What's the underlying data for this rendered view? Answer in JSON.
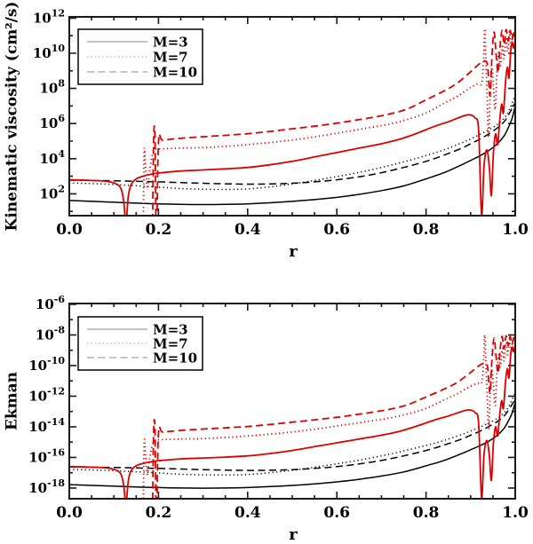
{
  "figure": {
    "background": "#ffffff",
    "colors": {
      "black": "#000000",
      "red": "#dd0000",
      "legend_sample": "#888888",
      "frame": "#1a1a1a"
    }
  },
  "chart_data": {
    "type": "line",
    "x_label": "r",
    "x_range": [
      0.0,
      1.0
    ],
    "x_tick_labels": [
      "0.0",
      "0.2",
      "0.4",
      "0.6",
      "0.8",
      "1.0"
    ],
    "legend": {
      "position": "upper left",
      "labels": [
        "M=3",
        "M=7",
        "M=10"
      ],
      "styles": [
        "solid",
        "dotted",
        "dashed"
      ]
    },
    "panels": [
      {
        "id": "top",
        "ylabel": "Kinematic viscosity (cm²/s)",
        "y_scale": "log",
        "y_range_exponents": [
          1,
          12
        ],
        "y_tick_labels": [
          "10^2",
          "10^4",
          "10^6",
          "10^8",
          "10^10",
          "10^12"
        ],
        "log10_offset": 0
      },
      {
        "id": "bottom",
        "ylabel": "Ekman",
        "y_scale": "log",
        "y_range_exponents": [
          -18.7,
          -6
        ],
        "y_tick_labels": [
          "10^-18",
          "10^-16",
          "10^-14",
          "10^-12",
          "10^-10",
          "10^-8",
          "10^-6"
        ],
        "log10_offset": -19.4,
        "note": "Ekman curves equal kinematic-viscosity curves scaled by 10^-19.4"
      }
    ],
    "series": [
      {
        "name": "black-M3",
        "legend_label": "M=3",
        "color_key": "black",
        "linestyle": "solid",
        "points_r_log10": [
          [
            0,
            1.62
          ],
          [
            0.05,
            1.57
          ],
          [
            0.1,
            1.52
          ],
          [
            0.15,
            1.47
          ],
          [
            0.2,
            1.43
          ],
          [
            0.25,
            1.4
          ],
          [
            0.3,
            1.39
          ],
          [
            0.35,
            1.4
          ],
          [
            0.4,
            1.43
          ],
          [
            0.45,
            1.49
          ],
          [
            0.5,
            1.57
          ],
          [
            0.55,
            1.67
          ],
          [
            0.6,
            1.8
          ],
          [
            0.65,
            1.97
          ],
          [
            0.7,
            2.18
          ],
          [
            0.75,
            2.45
          ],
          [
            0.8,
            2.85
          ],
          [
            0.84,
            3.2
          ],
          [
            0.88,
            3.65
          ],
          [
            0.9,
            3.9
          ],
          [
            0.92,
            4.15
          ],
          [
            0.94,
            4.45
          ],
          [
            0.96,
            4.85
          ],
          [
            0.975,
            5.3
          ],
          [
            0.985,
            5.8
          ],
          [
            0.993,
            6.3
          ],
          [
            1,
            7.0
          ]
        ]
      },
      {
        "name": "black-M7",
        "legend_label": "M=7",
        "color_key": "black",
        "linestyle": "dotted",
        "points_r_log10": [
          [
            0,
            2.62
          ],
          [
            0.05,
            2.58
          ],
          [
            0.1,
            2.53
          ],
          [
            0.15,
            2.46
          ],
          [
            0.2,
            2.38
          ],
          [
            0.25,
            2.3
          ],
          [
            0.3,
            2.26
          ],
          [
            0.35,
            2.25
          ],
          [
            0.4,
            2.28
          ],
          [
            0.45,
            2.4
          ],
          [
            0.5,
            2.56
          ],
          [
            0.55,
            2.76
          ],
          [
            0.6,
            2.98
          ],
          [
            0.65,
            3.22
          ],
          [
            0.7,
            3.5
          ],
          [
            0.75,
            3.82
          ],
          [
            0.8,
            4.18
          ],
          [
            0.84,
            4.5
          ],
          [
            0.88,
            4.9
          ],
          [
            0.9,
            5.12
          ],
          [
            0.92,
            5.37
          ],
          [
            0.94,
            5.63
          ],
          [
            0.96,
            5.95
          ],
          [
            0.975,
            6.3
          ],
          [
            0.985,
            6.7
          ],
          [
            1,
            7.6
          ]
        ]
      },
      {
        "name": "black-M10",
        "legend_label": "M=10",
        "color_key": "black",
        "linestyle": "dashed",
        "points_r_log10": [
          [
            0,
            2.78
          ],
          [
            0.05,
            2.76
          ],
          [
            0.1,
            2.74
          ],
          [
            0.15,
            2.71
          ],
          [
            0.2,
            2.68
          ],
          [
            0.25,
            2.64
          ],
          [
            0.3,
            2.6
          ],
          [
            0.35,
            2.57
          ],
          [
            0.4,
            2.55
          ],
          [
            0.45,
            2.56
          ],
          [
            0.5,
            2.6
          ],
          [
            0.55,
            2.68
          ],
          [
            0.6,
            2.8
          ],
          [
            0.65,
            2.97
          ],
          [
            0.7,
            3.2
          ],
          [
            0.75,
            3.5
          ],
          [
            0.8,
            3.85
          ],
          [
            0.84,
            4.2
          ],
          [
            0.88,
            4.6
          ],
          [
            0.9,
            4.85
          ],
          [
            0.92,
            5.1
          ],
          [
            0.94,
            5.4
          ],
          [
            0.96,
            5.75
          ],
          [
            0.975,
            6.1
          ],
          [
            0.985,
            6.5
          ],
          [
            1,
            7.2
          ]
        ]
      },
      {
        "name": "red-M3",
        "color_key": "red",
        "linestyle": "solid",
        "points_r_log10": [
          [
            0,
            2.8
          ],
          [
            0.04,
            2.77
          ],
          [
            0.08,
            2.72
          ],
          [
            0.1,
            2.62
          ],
          [
            0.115,
            2.35
          ],
          [
            0.122,
            1.6
          ],
          [
            0.127,
            0.3
          ],
          [
            0.132,
            1.8
          ],
          [
            0.138,
            2.5
          ],
          [
            0.15,
            2.85
          ],
          [
            0.165,
            3.0
          ],
          [
            0.18,
            3.1
          ],
          [
            0.2,
            3.18
          ],
          [
            0.25,
            3.3
          ],
          [
            0.3,
            3.36
          ],
          [
            0.35,
            3.42
          ],
          [
            0.4,
            3.5
          ],
          [
            0.45,
            3.65
          ],
          [
            0.5,
            3.85
          ],
          [
            0.55,
            4.1
          ],
          [
            0.6,
            4.35
          ],
          [
            0.65,
            4.6
          ],
          [
            0.7,
            4.85
          ],
          [
            0.74,
            5.1
          ],
          [
            0.78,
            5.45
          ],
          [
            0.82,
            5.85
          ],
          [
            0.85,
            6.1
          ],
          [
            0.87,
            6.3
          ],
          [
            0.895,
            6.5
          ],
          [
            0.91,
            6.32
          ],
          [
            0.918,
            5.6
          ],
          [
            0.9245,
            0.8
          ],
          [
            0.93,
            3.6
          ],
          [
            0.9365,
            4.5
          ],
          [
            0.942,
            3.5
          ],
          [
            0.9465,
            1.9
          ],
          [
            0.951,
            4.3
          ],
          [
            0.956,
            5.4
          ],
          [
            0.9605,
            4.8
          ],
          [
            0.965,
            6.1
          ],
          [
            0.9695,
            7.1
          ],
          [
            0.9735,
            6.6
          ],
          [
            0.978,
            8.3
          ],
          [
            0.9825,
            9.2
          ],
          [
            0.986,
            8.6
          ],
          [
            0.99,
            10.2
          ],
          [
            0.9935,
            10.6
          ],
          [
            0.9965,
            10.3
          ],
          [
            1,
            10.75
          ]
        ]
      },
      {
        "name": "red-M7",
        "color_key": "red",
        "linestyle": "dotted",
        "points_r_log10": [
          [
            0.1655,
            -0.8
          ],
          [
            0.168,
            4.35
          ],
          [
            0.171,
            3.6
          ],
          [
            0.175,
            2.3
          ],
          [
            0.18,
            3.3
          ],
          [
            0.186,
            4.2
          ],
          [
            0.192,
            4.5
          ],
          [
            0.2,
            4.55
          ],
          [
            0.25,
            4.6
          ],
          [
            0.3,
            4.63
          ],
          [
            0.35,
            4.7
          ],
          [
            0.4,
            4.8
          ],
          [
            0.45,
            4.92
          ],
          [
            0.5,
            5.06
          ],
          [
            0.55,
            5.24
          ],
          [
            0.6,
            5.45
          ],
          [
            0.64,
            5.62
          ],
          [
            0.68,
            5.8
          ],
          [
            0.72,
            5.98
          ],
          [
            0.76,
            6.25
          ],
          [
            0.8,
            6.6
          ],
          [
            0.84,
            7.15
          ],
          [
            0.87,
            7.55
          ],
          [
            0.9,
            8.05
          ],
          [
            0.915,
            8.25
          ],
          [
            0.925,
            8.3
          ],
          [
            0.9285,
            9.5
          ],
          [
            0.9315,
            11.4
          ],
          [
            0.934,
            9.8
          ],
          [
            0.937,
            7.5
          ],
          [
            0.9405,
            5.2
          ],
          [
            0.944,
            7.8
          ],
          [
            0.9475,
            9.2
          ],
          [
            0.951,
            8.2
          ],
          [
            0.955,
            6.8
          ],
          [
            0.959,
            8.9
          ],
          [
            0.963,
            10.1
          ],
          [
            0.967,
            9.3
          ],
          [
            0.971,
            10.5
          ],
          [
            0.975,
            9.7
          ],
          [
            0.979,
            10.9
          ],
          [
            0.983,
            10.1
          ],
          [
            0.987,
            11.1
          ],
          [
            0.991,
            10.3
          ],
          [
            0.995,
            11.2
          ],
          [
            1,
            10.9
          ]
        ]
      },
      {
        "name": "red-M10",
        "color_key": "red",
        "linestyle": "dashed",
        "points_r_log10": [
          [
            0.1865,
            -0.8
          ],
          [
            0.189,
            4.9
          ],
          [
            0.192,
            5.3
          ],
          [
            0.1955,
            -0.8
          ],
          [
            0.2,
            4.95
          ],
          [
            0.21,
            5.05
          ],
          [
            0.25,
            5.16
          ],
          [
            0.3,
            5.25
          ],
          [
            0.35,
            5.33
          ],
          [
            0.4,
            5.42
          ],
          [
            0.45,
            5.55
          ],
          [
            0.5,
            5.7
          ],
          [
            0.55,
            5.85
          ],
          [
            0.6,
            6.02
          ],
          [
            0.64,
            6.18
          ],
          [
            0.68,
            6.35
          ],
          [
            0.72,
            6.55
          ],
          [
            0.76,
            6.85
          ],
          [
            0.8,
            7.35
          ],
          [
            0.84,
            7.85
          ],
          [
            0.87,
            8.3
          ],
          [
            0.9,
            8.95
          ],
          [
            0.915,
            9.3
          ],
          [
            0.925,
            9.5
          ],
          [
            0.932,
            9.55
          ],
          [
            0.938,
            9.3
          ],
          [
            0.9435,
            7.6
          ],
          [
            0.948,
            9.9
          ],
          [
            0.9525,
            11.2
          ],
          [
            0.957,
            10.0
          ],
          [
            0.9615,
            8.9
          ],
          [
            0.966,
            10.4
          ],
          [
            0.9705,
            11.3
          ],
          [
            0.975,
            10.5
          ],
          [
            0.9795,
            11.35
          ],
          [
            0.984,
            10.7
          ],
          [
            0.9885,
            11.3
          ],
          [
            0.993,
            10.8
          ],
          [
            0.9975,
            11.3
          ],
          [
            1,
            11.0
          ]
        ]
      }
    ]
  }
}
